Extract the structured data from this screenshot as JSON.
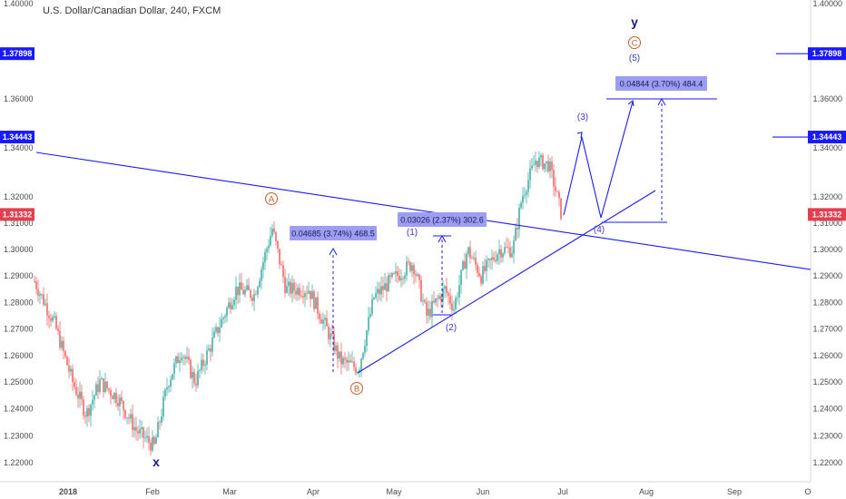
{
  "chart_data": {
    "type": "candlestick",
    "title": "U.S. Dollar/Canadian Dollar, 240, FXCM",
    "ylim": [
      1.22,
      1.4
    ],
    "y_ticks": [
      "1.22000",
      "1.23000",
      "1.24000",
      "1.25000",
      "1.26000",
      "1.27000",
      "1.28000",
      "1.29000",
      "1.30000",
      "1.31000",
      "1.32000",
      "1.34000",
      "1.36000",
      "1.40000"
    ],
    "x_ticks": [
      "2018",
      "Feb",
      "Mar",
      "Apr",
      "May",
      "Jun",
      "Jul",
      "Aug",
      "Sep",
      "O"
    ],
    "price_markers": [
      {
        "label": "1.37898",
        "value": 1.37898,
        "color": "#1a1aff"
      },
      {
        "label": "1.34443",
        "value": 1.34443,
        "color": "#1a1aff"
      },
      {
        "label": "1.31332",
        "value": 1.31332,
        "color": "#e53e4e"
      }
    ],
    "wave_labels": [
      {
        "text": "x",
        "style": "bold"
      },
      {
        "text": "y",
        "style": "bold"
      },
      {
        "text": "A",
        "style": "circled"
      },
      {
        "text": "B",
        "style": "circled"
      },
      {
        "text": "C",
        "style": "circled"
      },
      {
        "text": "(1)",
        "style": "plain"
      },
      {
        "text": "(2)",
        "style": "plain"
      },
      {
        "text": "(3)",
        "style": "plain"
      },
      {
        "text": "(4)",
        "style": "plain"
      },
      {
        "text": "(5)",
        "style": "plain"
      }
    ],
    "measure_boxes": [
      {
        "text": "0.04685 (3.74%) 468.5"
      },
      {
        "text": "0.03026 (2.37%) 302.6"
      },
      {
        "text": "0.04844 (3.70%) 484.4"
      }
    ],
    "colors": {
      "up": "#26a69a",
      "down": "#ef5350",
      "annotation": "#1a1aff",
      "wave": "#c8602a",
      "label_box": "#9d9df2"
    }
  }
}
